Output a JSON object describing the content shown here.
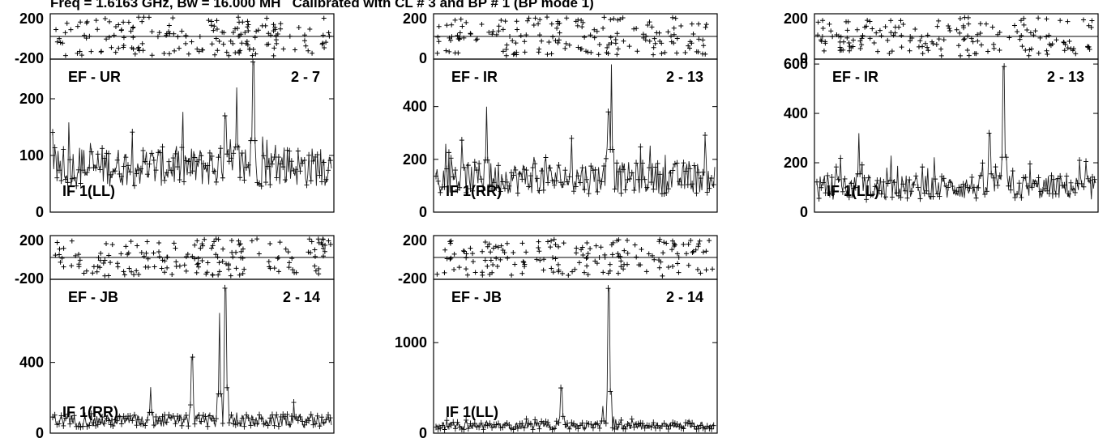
{
  "header": {
    "title": "Freq = 1.6163 GHz, Bw = 16.000 MH   Calibrated with CL # 3 and BP # 1 (BP mode 1)"
  },
  "chart_data": [
    {
      "type": "scatter",
      "baseline_label": "EF - UR",
      "baseline_number": "2 - 7",
      "polarization": "IF 1(LL)",
      "phase": {
        "yticks": [
          "200",
          "-200"
        ],
        "ylim": [
          -200,
          200
        ]
      },
      "amplitude": {
        "yticks": [
          "0",
          "100",
          "200"
        ],
        "ylim": [
          0,
          270
        ],
        "baseline": 80,
        "noise": 35,
        "spikes": [
          [
            0.66,
            220
          ],
          [
            0.72,
            265
          ],
          [
            0.62,
            170
          ]
        ]
      }
    },
    {
      "type": "scatter",
      "baseline_label": "EF - IR",
      "baseline_number": "2 - 13",
      "polarization": "IF 1(RR)",
      "phase": {
        "yticks": [
          "200",
          "0"
        ],
        "ylim": [
          0,
          250
        ]
      },
      "amplitude": {
        "yticks": [
          "0",
          "200",
          "400"
        ],
        "ylim": [
          0,
          580
        ],
        "baseline": 130,
        "noise": 60,
        "spikes": [
          [
            0.63,
            560
          ],
          [
            0.62,
            380
          ],
          [
            0.18,
            400
          ]
        ]
      }
    },
    {
      "type": "scatter",
      "baseline_label": "EF - IR",
      "baseline_number": "2 - 13",
      "polarization": "IF 1(LL)",
      "phase": {
        "yticks": [
          "200",
          "0"
        ],
        "ylim": [
          0,
          250
        ]
      },
      "amplitude": {
        "yticks": [
          "0",
          "200",
          "400",
          "600"
        ],
        "ylim": [
          0,
          620
        ],
        "baseline": 100,
        "noise": 50,
        "spikes": [
          [
            0.67,
            590
          ],
          [
            0.62,
            320
          ],
          [
            0.15,
            320
          ]
        ]
      }
    },
    {
      "type": "scatter",
      "baseline_label": "EF - JB",
      "baseline_number": "2 - 14",
      "polarization": "IF 1(RR)",
      "phase": {
        "yticks": [
          "200",
          "-200"
        ],
        "ylim": [
          -200,
          200
        ]
      },
      "amplitude": {
        "yticks": [
          "0",
          "400"
        ],
        "ylim": [
          0,
          870
        ],
        "baseline": 70,
        "noise": 35,
        "spikes": [
          [
            0.62,
            820
          ],
          [
            0.6,
            680
          ],
          [
            0.5,
            430
          ],
          [
            0.35,
            260
          ]
        ]
      }
    },
    {
      "type": "scatter",
      "baseline_label": "EF - JB",
      "baseline_number": "2 - 14",
      "polarization": "IF 1(LL)",
      "phase": {
        "yticks": [
          "200",
          "-200"
        ],
        "ylim": [
          -200,
          200
        ]
      },
      "amplitude": {
        "yticks": [
          "0",
          "1000"
        ],
        "ylim": [
          0,
          1700
        ],
        "baseline": 80,
        "noise": 40,
        "spikes": [
          [
            0.62,
            1600
          ],
          [
            0.45,
            500
          ],
          [
            0.6,
            300
          ]
        ]
      }
    }
  ]
}
